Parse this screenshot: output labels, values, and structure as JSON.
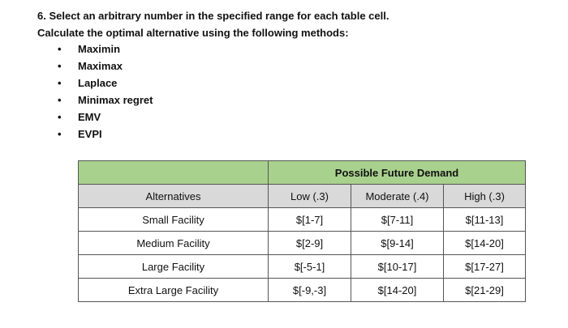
{
  "header": {
    "lines": [
      "6. Select an arbitrary number in the specified range for each table cell.",
      "Calculate the optimal alternative using the following methods:"
    ]
  },
  "bullets": [
    "Maximin",
    "Maximax",
    "Laplace",
    "Minimax regret",
    "EMV",
    "EVPI"
  ],
  "table": {
    "group_header": "Possible Future Demand",
    "columns": [
      "Alternatives",
      "Low (.3)",
      "Moderate (.4)",
      "High (.3)"
    ],
    "rows": [
      [
        "Small Facility",
        "$[1-7]",
        "$[7-11]",
        "$[11-13]"
      ],
      [
        "Medium Facility",
        "$[2-9]",
        "$[9-14]",
        "$[14-20]"
      ],
      [
        "Large Facility",
        "$[-5-1]",
        "$[10-17]",
        "$[17-27]"
      ],
      [
        "Extra Large Facility",
        "$[-9,-3]",
        "$[14-20]",
        "$[21-29]"
      ]
    ]
  }
}
